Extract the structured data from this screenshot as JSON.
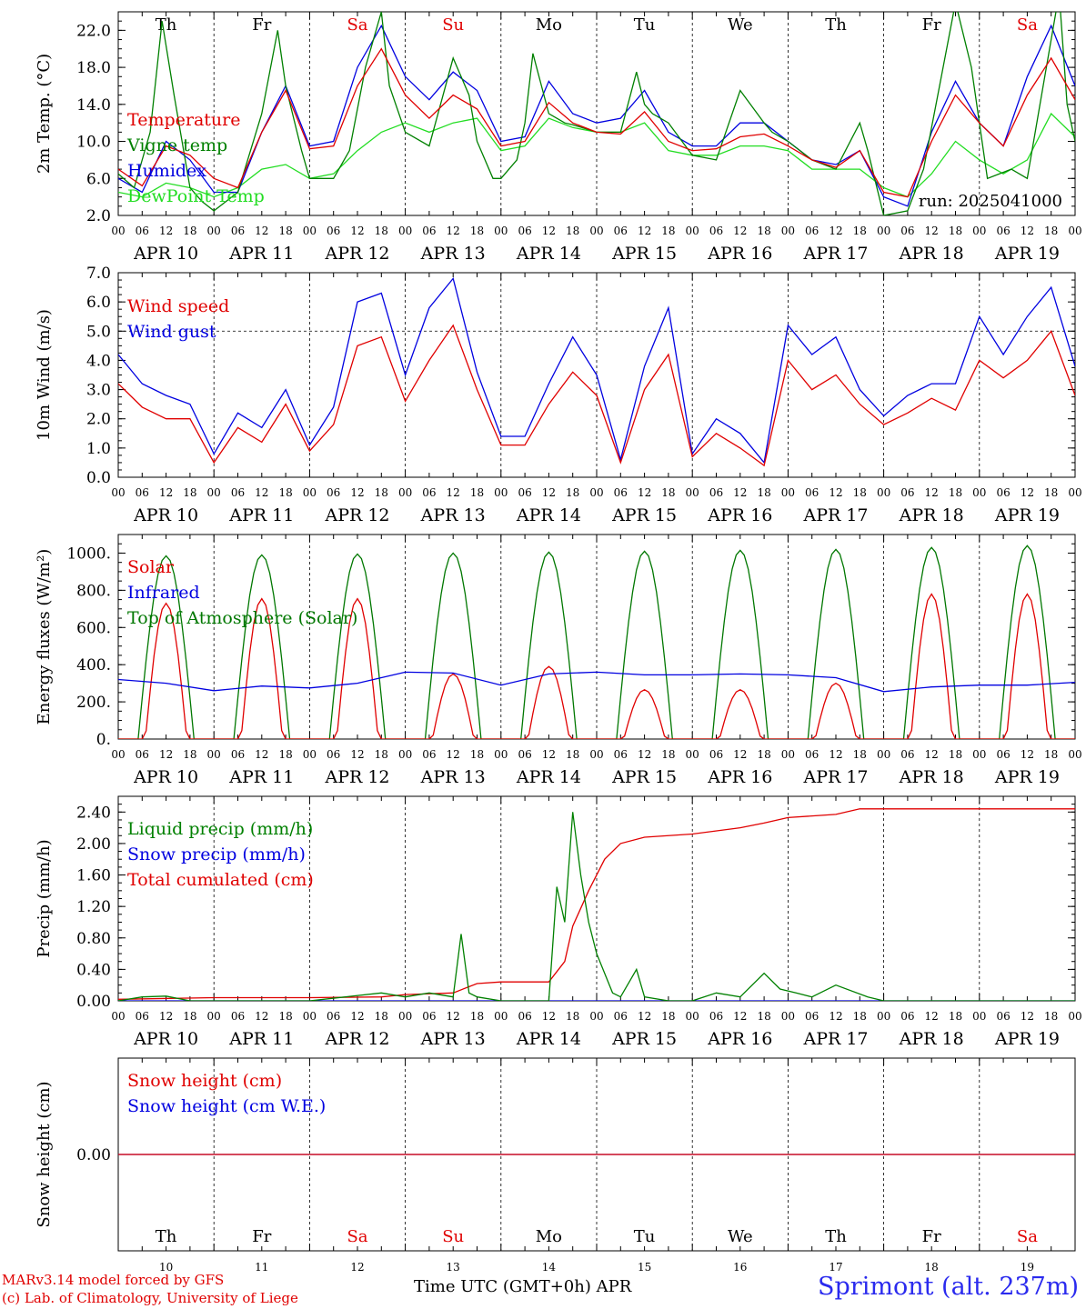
{
  "days": {
    "dates": [
      "APR 10",
      "APR 11",
      "APR 12",
      "APR 13",
      "APR 14",
      "APR 15",
      "APR 16",
      "APR 17",
      "APR 18",
      "APR 19"
    ],
    "weekdays": [
      "Th",
      "Fr",
      "Sa",
      "Su",
      "Mo",
      "Tu",
      "We",
      "Th",
      "Fr",
      "Sa"
    ],
    "weekday_colors": [
      "#000000",
      "#000000",
      "#e00000",
      "#e00000",
      "#000000",
      "#000000",
      "#000000",
      "#000000",
      "#000000",
      "#e00000"
    ],
    "day_numbers": [
      "10",
      "11",
      "12",
      "13",
      "14",
      "15",
      "16",
      "17",
      "18",
      "19"
    ],
    "hour_ticks": [
      "00",
      "06",
      "12",
      "18"
    ],
    "final_tick": "00"
  },
  "footer": {
    "credit_line1": "MARv3.14 model forced by GFS",
    "credit_line2": "(c) Lab. of Climatology, University of Liege",
    "xaxis_title": "Time UTC (GMT+0h) APR",
    "station": "Sprimont (alt. 237m)"
  },
  "chart_data": [
    {
      "type": "line",
      "ylabel": "2m Temp. (°C)",
      "ylim": [
        2.0,
        24.0
      ],
      "yticks": [
        "2.0",
        "6.0",
        "10.0",
        "14.0",
        "18.0",
        "22.0"
      ],
      "run_label": "run: 2025041000",
      "x_unit": "hours since APR 10 00 UTC",
      "series": [
        {
          "name": "Temperature",
          "color": "#e00000",
          "x": [
            0,
            6,
            12,
            18,
            24,
            30,
            36,
            42,
            48,
            54,
            60,
            66,
            72,
            78,
            84,
            90,
            96,
            102,
            108,
            114,
            120,
            126,
            132,
            138,
            144,
            150,
            156,
            162,
            168,
            174,
            180,
            186,
            192,
            198,
            204,
            210,
            216,
            222,
            228,
            234,
            240
          ],
          "values": [
            7.0,
            5.2,
            9.5,
            8.5,
            6.0,
            5.0,
            11.0,
            15.5,
            9.2,
            9.5,
            16.0,
            20.0,
            15.0,
            12.5,
            15.0,
            13.5,
            9.5,
            10.0,
            14.2,
            12.0,
            11.0,
            10.8,
            13.2,
            10.0,
            9.0,
            9.2,
            10.5,
            10.8,
            9.5,
            8.0,
            7.2,
            9.0,
            4.5,
            4.0,
            10.0,
            15.0,
            12.0,
            9.5,
            15.0,
            19.0,
            14.5
          ]
        },
        {
          "name": "Vigne temp",
          "color": "#008000",
          "x": [
            0,
            4,
            8,
            11,
            14,
            18,
            21,
            24,
            30,
            36,
            40,
            42,
            46,
            48,
            54,
            58,
            62,
            66,
            68,
            72,
            78,
            84,
            88,
            90,
            94,
            96,
            100,
            102,
            104,
            108,
            112,
            114,
            120,
            126,
            130,
            132,
            134,
            138,
            144,
            150,
            156,
            162,
            164,
            168,
            174,
            180,
            186,
            188,
            192,
            198,
            202,
            206,
            210,
            214,
            218,
            224,
            228,
            232,
            236,
            238,
            240
          ],
          "values": [
            6.5,
            5.0,
            11.0,
            23.0,
            15.0,
            5.0,
            3.5,
            2.5,
            4.5,
            13.0,
            22.0,
            16.0,
            9.0,
            6.0,
            6.0,
            9.0,
            18.0,
            24.0,
            16.0,
            11.0,
            9.5,
            19.0,
            15.0,
            10.0,
            6.0,
            6.0,
            8.0,
            12.0,
            19.5,
            13.0,
            12.0,
            11.8,
            11.0,
            11.0,
            17.5,
            14.0,
            13.0,
            12.0,
            8.5,
            8.0,
            15.5,
            12.0,
            11.0,
            10.0,
            8.0,
            7.0,
            12.0,
            9.0,
            2.0,
            2.5,
            7.0,
            16.0,
            25.0,
            18.0,
            6.0,
            7.0,
            6.0,
            16.0,
            26.0,
            14.0,
            10.0
          ]
        },
        {
          "name": "Humidex",
          "color": "#0000e0",
          "x": [
            0,
            6,
            12,
            18,
            24,
            30,
            36,
            42,
            48,
            54,
            60,
            66,
            72,
            78,
            84,
            90,
            96,
            102,
            108,
            114,
            120,
            126,
            132,
            138,
            144,
            150,
            156,
            162,
            168,
            174,
            180,
            186,
            192,
            198,
            204,
            210,
            216,
            222,
            228,
            234,
            240
          ],
          "values": [
            6.0,
            4.5,
            10.0,
            8.0,
            4.5,
            4.5,
            11.0,
            16.0,
            9.5,
            10.0,
            18.0,
            22.5,
            17.0,
            14.5,
            17.5,
            15.5,
            10.0,
            10.5,
            16.5,
            13.0,
            12.0,
            12.5,
            15.5,
            11.0,
            9.5,
            9.5,
            12.0,
            12.0,
            10.0,
            8.0,
            7.5,
            9.0,
            4.0,
            3.0,
            11.0,
            16.5,
            12.0,
            9.5,
            17.0,
            22.5,
            16.0
          ]
        },
        {
          "name": "DewPoint Temp",
          "color": "#22dd22",
          "x": [
            0,
            6,
            12,
            18,
            24,
            30,
            36,
            42,
            48,
            54,
            60,
            66,
            72,
            78,
            84,
            90,
            96,
            102,
            108,
            114,
            120,
            126,
            132,
            138,
            144,
            150,
            156,
            162,
            168,
            174,
            180,
            186,
            192,
            198,
            204,
            210,
            216,
            222,
            228,
            234,
            240
          ],
          "values": [
            4.5,
            4.0,
            5.5,
            5.0,
            4.0,
            5.0,
            7.0,
            7.5,
            6.0,
            6.5,
            9.0,
            11.0,
            12.0,
            11.0,
            12.0,
            12.5,
            9.0,
            9.5,
            12.5,
            11.5,
            11.0,
            11.0,
            12.0,
            9.0,
            8.5,
            8.5,
            9.5,
            9.5,
            9.0,
            7.0,
            7.0,
            7.0,
            5.0,
            4.0,
            6.5,
            10.0,
            8.0,
            6.5,
            8.0,
            13.0,
            10.5
          ]
        }
      ]
    },
    {
      "type": "line",
      "ylabel": "10m Wind (m/s)",
      "ylim": [
        0.0,
        7.0
      ],
      "yticks": [
        "0.0",
        "1.0",
        "2.0",
        "3.0",
        "4.0",
        "5.0",
        "6.0",
        "7.0"
      ],
      "reference_line": 5.0,
      "x_unit": "hours since APR 10 00 UTC",
      "series": [
        {
          "name": "Wind speed",
          "color": "#e00000",
          "x": [
            0,
            6,
            12,
            18,
            24,
            30,
            36,
            42,
            48,
            54,
            60,
            66,
            72,
            78,
            84,
            90,
            96,
            102,
            108,
            114,
            120,
            126,
            132,
            138,
            144,
            150,
            156,
            162,
            168,
            174,
            180,
            186,
            192,
            198,
            204,
            210,
            216,
            222,
            228,
            234,
            240
          ],
          "values": [
            3.2,
            2.4,
            2.0,
            2.0,
            0.5,
            1.7,
            1.2,
            2.5,
            0.9,
            1.8,
            4.5,
            4.8,
            2.6,
            4.0,
            5.2,
            3.0,
            1.1,
            1.1,
            2.5,
            3.6,
            2.8,
            0.5,
            3.0,
            4.2,
            0.7,
            1.5,
            1.0,
            0.4,
            4.0,
            3.0,
            3.5,
            2.5,
            1.8,
            2.2,
            2.7,
            2.3,
            4.0,
            3.4,
            4.0,
            5.0,
            2.8
          ]
        },
        {
          "name": "Wind gust",
          "color": "#0000e0",
          "x": [
            0,
            6,
            12,
            18,
            24,
            30,
            36,
            42,
            48,
            54,
            60,
            66,
            72,
            78,
            84,
            90,
            96,
            102,
            108,
            114,
            120,
            126,
            132,
            138,
            144,
            150,
            156,
            162,
            168,
            174,
            180,
            186,
            192,
            198,
            204,
            210,
            216,
            222,
            228,
            234,
            240
          ],
          "values": [
            4.2,
            3.2,
            2.8,
            2.5,
            0.8,
            2.2,
            1.7,
            3.0,
            1.1,
            2.4,
            6.0,
            6.3,
            3.5,
            5.8,
            6.8,
            3.6,
            1.4,
            1.4,
            3.2,
            4.8,
            3.5,
            0.6,
            3.8,
            5.8,
            0.8,
            2.0,
            1.5,
            0.5,
            5.2,
            4.2,
            4.8,
            3.0,
            2.1,
            2.8,
            3.2,
            3.2,
            5.5,
            4.2,
            5.5,
            6.5,
            3.8
          ]
        }
      ]
    },
    {
      "type": "line",
      "ylabel": "Energy fluxes (W/m²)",
      "ylim": [
        0,
        1100
      ],
      "yticks": [
        "0.",
        "200.",
        "400.",
        "600.",
        "800.",
        "1000."
      ],
      "x_unit": "hours since APR 10 00 UTC",
      "series": [
        {
          "name": "Solar",
          "color": "#e00000",
          "daily_peak": [
            730,
            755,
            755,
            350,
            390,
            265,
            265,
            300,
            780,
            780
          ]
        },
        {
          "name": "Infrared",
          "color": "#0000e0",
          "x": [
            0,
            12,
            24,
            36,
            48,
            60,
            72,
            84,
            96,
            108,
            120,
            132,
            144,
            156,
            168,
            180,
            192,
            204,
            216,
            228,
            240
          ],
          "values": [
            320,
            300,
            260,
            285,
            275,
            300,
            360,
            355,
            290,
            350,
            360,
            345,
            345,
            350,
            345,
            330,
            255,
            280,
            290,
            290,
            305
          ]
        },
        {
          "name": "Top of Atmosphere (Solar)",
          "color": "#007700",
          "daily_peak": [
            985,
            990,
            995,
            1000,
            1005,
            1010,
            1015,
            1020,
            1030,
            1040
          ]
        }
      ]
    },
    {
      "type": "line",
      "ylabel": "Precip (mm/h)",
      "ylim": [
        0.0,
        2.6
      ],
      "yticks": [
        "0.00",
        "0.40",
        "0.80",
        "1.20",
        "1.60",
        "2.00",
        "2.40"
      ],
      "x_unit": "hours since APR 10 00 UTC",
      "series": [
        {
          "name": "Liquid precip (mm/h)",
          "color": "#008000",
          "x": [
            0,
            6,
            12,
            18,
            24,
            48,
            66,
            72,
            78,
            84,
            86,
            88,
            90,
            96,
            108,
            110,
            112,
            114,
            116,
            118,
            120,
            124,
            126,
            130,
            132,
            138,
            144,
            150,
            156,
            162,
            166,
            170,
            174,
            180,
            188,
            192,
            240
          ],
          "values": [
            0,
            0.05,
            0.06,
            0,
            0,
            0,
            0.1,
            0.05,
            0.1,
            0.05,
            0.85,
            0.1,
            0.05,
            0,
            0,
            1.45,
            1.0,
            2.4,
            1.6,
            1.0,
            0.6,
            0.1,
            0.05,
            0.4,
            0.05,
            0,
            0,
            0.1,
            0.05,
            0.35,
            0.15,
            0.1,
            0.05,
            0.2,
            0.05,
            0,
            0
          ]
        },
        {
          "name": "Snow precip (mm/h)",
          "color": "#0000e0",
          "x": [
            0,
            240
          ],
          "values": [
            0,
            0
          ]
        },
        {
          "name": "Total cumulated (cm)",
          "color": "#e00000",
          "x": [
            0,
            24,
            48,
            66,
            72,
            84,
            90,
            96,
            108,
            112,
            114,
            118,
            122,
            126,
            132,
            144,
            156,
            162,
            168,
            180,
            186,
            192,
            240
          ],
          "values": [
            0.02,
            0.04,
            0.04,
            0.05,
            0.08,
            0.1,
            0.22,
            0.24,
            0.24,
            0.5,
            0.95,
            1.4,
            1.8,
            2.0,
            2.08,
            2.12,
            2.2,
            2.26,
            2.33,
            2.37,
            2.44,
            2.44,
            2.44
          ]
        }
      ]
    },
    {
      "type": "line",
      "ylabel": "Snow height (cm)",
      "ylim": [
        -1.0,
        1.0
      ],
      "yticks": [
        "0.00"
      ],
      "x_unit": "hours since APR 10 00 UTC",
      "series": [
        {
          "name": "Snow height (cm)",
          "color": "#e00000",
          "x": [
            0,
            240
          ],
          "values": [
            0,
            0
          ]
        },
        {
          "name": "Snow height (cm W.E.)",
          "color": "#0000e0",
          "x": [
            0,
            240
          ],
          "values": [
            0,
            0
          ]
        }
      ]
    }
  ]
}
